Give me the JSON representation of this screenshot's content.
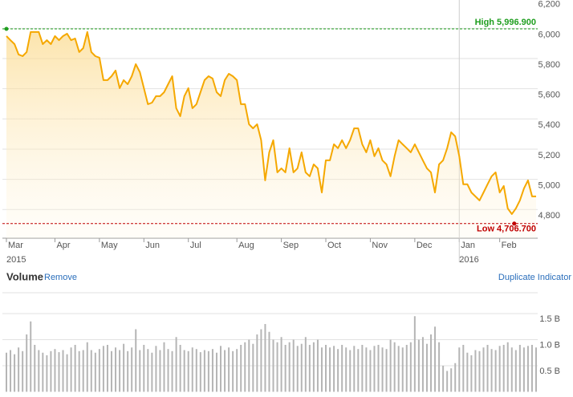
{
  "chart_data": [
    {
      "type": "line",
      "color": "#f5a800",
      "values": [
        5949,
        5922,
        5896,
        5827,
        5816,
        5843,
        5976,
        5976,
        5976,
        5896,
        5922,
        5896,
        5949,
        5922,
        5949,
        5965,
        5922,
        5933,
        5843,
        5869,
        5976,
        5843,
        5816,
        5806,
        5657,
        5657,
        5683,
        5721,
        5604,
        5657,
        5630,
        5683,
        5763,
        5710,
        5604,
        5498,
        5508,
        5551,
        5551,
        5577,
        5630,
        5683,
        5471,
        5418,
        5551,
        5604,
        5471,
        5498,
        5577,
        5657,
        5683,
        5668,
        5577,
        5551,
        5657,
        5699,
        5683,
        5657,
        5498,
        5498,
        5365,
        5338,
        5365,
        5259,
        4993,
        5179,
        5259,
        5046,
        5073,
        5046,
        5206,
        5046,
        5073,
        5179,
        5046,
        5020,
        5099,
        5073,
        4913,
        5126,
        5126,
        5232,
        5206,
        5259,
        5206,
        5259,
        5338,
        5338,
        5232,
        5179,
        5259,
        5153,
        5206,
        5126,
        5099,
        5020,
        5153,
        5259,
        5232,
        5206,
        5179,
        5232,
        5179,
        5126,
        5073,
        5046,
        4913,
        5099,
        5126,
        5206,
        5312,
        5285,
        5153,
        4967,
        4967,
        4913,
        4887,
        4860,
        4913,
        4967,
        5020,
        5046,
        4913,
        4956,
        4807,
        4770,
        4807,
        4860,
        4940,
        4993,
        4887,
        4887
      ],
      "categories": [
        "Mar",
        null,
        null,
        null,
        null,
        null,
        null,
        null,
        null,
        null,
        null,
        null,
        "Apr",
        null,
        null,
        null,
        null,
        null,
        null,
        null,
        null,
        null,
        null,
        "May",
        null,
        null,
        null,
        null,
        null,
        null,
        null,
        null,
        null,
        null,
        "Jun",
        null,
        null,
        null,
        null,
        null,
        null,
        null,
        null,
        null,
        null,
        "Jul",
        null,
        null,
        null,
        null,
        null,
        null,
        null,
        null,
        null,
        null,
        null,
        "Aug",
        null,
        null,
        null,
        null,
        null,
        null,
        null,
        null,
        null,
        null,
        "Sep",
        null,
        null,
        null,
        null,
        null,
        null,
        null,
        null,
        null,
        null,
        "Oct",
        null,
        null,
        null,
        null,
        null,
        null,
        null,
        null,
        null,
        null,
        "Nov",
        null,
        null,
        null,
        null,
        null,
        null,
        null,
        null,
        null,
        null,
        "Dec",
        null,
        null,
        null,
        null,
        null,
        null,
        null,
        null,
        null,
        null,
        "Jan",
        null,
        null,
        null,
        null,
        null,
        null,
        null,
        null,
        null,
        "Feb",
        null,
        null,
        null,
        null,
        null,
        null,
        null,
        null,
        null
      ],
      "category_years": [
        "2015",
        null,
        null,
        null,
        null,
        null,
        null,
        null,
        null,
        null,
        null,
        null,
        null,
        null,
        null,
        null,
        null,
        null,
        null,
        null,
        null,
        null,
        null,
        null,
        null,
        null,
        null,
        null,
        null,
        null,
        null,
        null,
        null,
        null,
        null,
        null,
        null,
        null,
        null,
        null,
        null,
        null,
        null,
        null,
        null,
        null,
        null,
        null,
        null,
        null,
        null,
        null,
        null,
        null,
        null,
        null,
        null,
        null,
        null,
        null,
        null,
        null,
        null,
        null,
        null,
        null,
        null,
        null,
        null,
        null,
        null,
        null,
        null,
        null,
        null,
        null,
        null,
        null,
        null,
        null,
        null,
        null,
        null,
        null,
        null,
        null,
        null,
        null,
        null,
        null,
        null,
        null,
        null,
        null,
        null,
        null,
        null,
        null,
        null,
        null,
        null,
        null,
        null,
        null,
        null,
        null,
        null,
        null,
        null,
        null,
        null,
        null,
        "2016",
        null,
        null,
        null,
        null,
        null,
        null,
        null,
        null,
        null,
        null,
        null,
        null,
        null,
        null,
        null,
        null,
        null,
        null,
        null
      ],
      "ylim": [
        4610,
        6188
      ],
      "yticks": [
        {
          "value": 4800,
          "label": "4,800"
        },
        {
          "value": 5000,
          "label": "5,000"
        },
        {
          "value": 5200,
          "label": "5,200"
        },
        {
          "value": 5400,
          "label": "5,400"
        },
        {
          "value": 5600,
          "label": "5,600"
        },
        {
          "value": 5800,
          "label": "5,800"
        },
        {
          "value": 6000,
          "label": "6,000"
        },
        {
          "value": 6200,
          "label": "6,200"
        }
      ],
      "grid": true,
      "reference_lines": [
        {
          "label": "High 5,996.900",
          "value": 5996.9,
          "color": "#1f9e1f"
        },
        {
          "label": "Low 4,706.700",
          "value": 4706.7,
          "color": "#c00000"
        }
      ]
    },
    {
      "type": "bar",
      "title": "Volume",
      "links": [
        "Remove",
        "Duplicate Indicator"
      ],
      "color": "#b5b5b5",
      "values": [
        0.75,
        0.8,
        0.72,
        0.85,
        0.78,
        1.1,
        1.35,
        0.9,
        0.8,
        0.75,
        0.7,
        0.78,
        0.82,
        0.76,
        0.8,
        0.72,
        0.85,
        0.9,
        0.78,
        0.8,
        0.95,
        0.8,
        0.75,
        0.82,
        0.88,
        0.9,
        0.78,
        0.85,
        0.8,
        0.92,
        0.78,
        0.85,
        1.2,
        0.8,
        0.9,
        0.82,
        0.75,
        0.88,
        0.8,
        0.95,
        0.82,
        0.78,
        1.05,
        0.9,
        0.8,
        0.78,
        0.85,
        0.82,
        0.76,
        0.8,
        0.78,
        0.82,
        0.75,
        0.88,
        0.8,
        0.85,
        0.78,
        0.82,
        0.9,
        0.95,
        1.0,
        0.92,
        1.1,
        1.2,
        1.3,
        1.15,
        1.0,
        0.95,
        1.05,
        0.9,
        0.95,
        1.0,
        0.88,
        0.92,
        1.05,
        0.9,
        0.95,
        1.0,
        0.85,
        0.9,
        0.85,
        0.88,
        0.82,
        0.9,
        0.85,
        0.8,
        0.88,
        0.82,
        0.9,
        0.85,
        0.8,
        0.88,
        0.9,
        0.85,
        0.82,
        1.0,
        0.95,
        0.88,
        0.85,
        0.9,
        0.95,
        1.45,
        1.0,
        1.05,
        0.92,
        1.1,
        1.25,
        0.95,
        0.5,
        0.4,
        0.45,
        0.55,
        0.85,
        0.9,
        0.75,
        0.7,
        0.8,
        0.78,
        0.85,
        0.9,
        0.82,
        0.8,
        0.88,
        0.9,
        0.95,
        0.85,
        0.8,
        0.9,
        0.85,
        0.88,
        0.9,
        0.85
      ],
      "ylim": [
        0,
        1.9
      ],
      "yticks": [
        {
          "value": 0.5,
          "label": "0.5 B"
        },
        {
          "value": 1.0,
          "label": "1.0 B"
        },
        {
          "value": 1.5,
          "label": "1.5 B"
        }
      ],
      "grid": true
    }
  ]
}
